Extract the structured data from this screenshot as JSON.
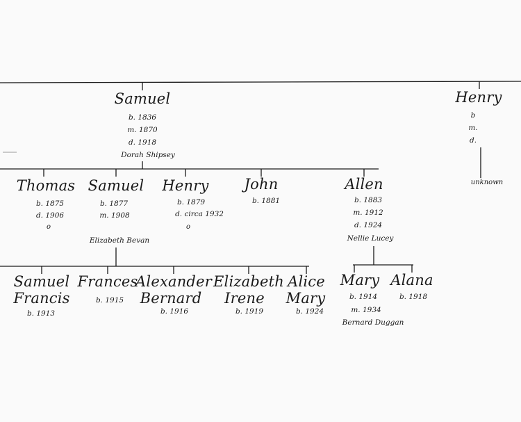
{
  "gen1": {
    "samuel": {
      "name": "Samuel",
      "born": "b. 1836",
      "married": "m. 1870",
      "died": "d. 1918",
      "spouse": "Dorah Shipsey"
    },
    "henry": {
      "name": "Henry",
      "born": "b",
      "married": "m.",
      "died": "d.",
      "spouse": "unknown"
    }
  },
  "gen2": {
    "thomas": {
      "name": "Thomas",
      "born": "b. 1875",
      "died": "d. 1906",
      "mark": "o"
    },
    "samuel": {
      "name": "Samuel",
      "born": "b. 1877",
      "married": "m. 1908",
      "spouse": "Elizabeth Bevan"
    },
    "henry": {
      "name": "Henry",
      "born": "b. 1879",
      "died": "d. circa 1932",
      "mark": "o"
    },
    "john": {
      "name": "John",
      "born": "b. 1881"
    },
    "allen": {
      "name": "Allen",
      "born": "b. 1883",
      "married": "m. 1912",
      "died": "d. 1924",
      "spouse": "Nellie Lucey"
    }
  },
  "gen3": {
    "samuel_francis": {
      "name_line1": "Samuel",
      "name_line2": "Francis",
      "born": "b. 1913"
    },
    "frances": {
      "name": "Frances",
      "born": "b. 1915"
    },
    "alexander_bernard": {
      "name_line1": "Alexander",
      "name_line2": "Bernard",
      "born": "b. 1916"
    },
    "elizabeth_irene": {
      "name_line1": "Elizabeth",
      "name_line2": "Irene",
      "born": "b. 1919"
    },
    "alice_mary": {
      "name_line1": "Alice",
      "name_line2": "Mary",
      "born": "b. 1924"
    },
    "mary": {
      "name": "Mary",
      "born": "b. 1914",
      "married": "m. 1934",
      "spouse": "Bernard Duggan"
    },
    "alana": {
      "name": "Alana",
      "born": "b. 1918"
    }
  }
}
